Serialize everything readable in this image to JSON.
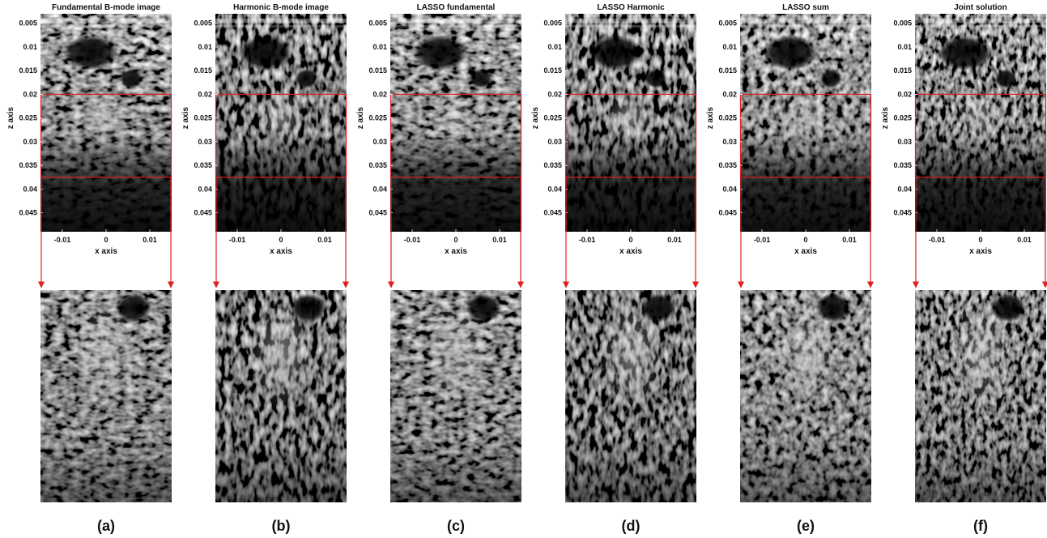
{
  "panels": [
    {
      "id": "a",
      "title": "Fundamental B-mode image",
      "caption": "(a)",
      "texture": "fundamental"
    },
    {
      "id": "b",
      "title": "Harmonic B-mode image",
      "caption": "(b)",
      "texture": "harmonic"
    },
    {
      "id": "c",
      "title": "LASSO fundamental",
      "caption": "(c)",
      "texture": "fundamental"
    },
    {
      "id": "d",
      "title": "LASSO Harmonic",
      "caption": "(d)",
      "texture": "harmonic"
    },
    {
      "id": "e",
      "title": "LASSO sum",
      "caption": "(e)",
      "texture": "sum"
    },
    {
      "id": "f",
      "title": "Joint solution",
      "caption": "(f)",
      "texture": "joint"
    }
  ],
  "axes": {
    "xlabel": "x axis",
    "ylabel": "z axis",
    "xticks": [
      "-0.01",
      "0",
      "0.01"
    ],
    "yticks": [
      "0.005",
      "0.01",
      "0.015",
      "0.02",
      "0.025",
      "0.03",
      "0.035",
      "0.04",
      "0.045"
    ],
    "xlim": [
      -0.015,
      0.015
    ],
    "ylim": [
      0.003,
      0.049
    ],
    "roi_z": [
      0.02,
      0.0375
    ]
  },
  "colors": {
    "roi_box": "#e02020",
    "arrow": "#e02020",
    "image_bg": "#000000"
  }
}
